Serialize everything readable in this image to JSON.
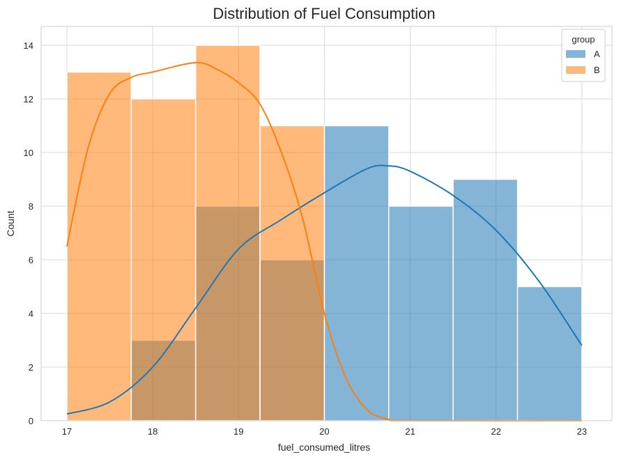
{
  "chart_data": {
    "type": "histogram",
    "title": "Distribution of Fuel Consumption",
    "xlabel": "fuel_consumed_litres",
    "ylabel": "Count",
    "xlim": [
      16.7,
      23.35
    ],
    "ylim": [
      0,
      14.7
    ],
    "x_ticks": [
      "17",
      "18",
      "19",
      "20",
      "21",
      "22",
      "23"
    ],
    "y_ticks": [
      "0",
      "2",
      "4",
      "6",
      "8",
      "10",
      "12",
      "14"
    ],
    "bin_edges": [
      17.0,
      17.75,
      18.5,
      19.25,
      20.0,
      20.75,
      21.5,
      22.25,
      23.0
    ],
    "grid": true,
    "legend": {
      "title": "group",
      "placement": "top-right"
    },
    "series": [
      {
        "name": "A",
        "color": "#1f77b4",
        "counts": [
          0,
          3,
          8,
          6,
          11,
          8,
          9,
          5
        ],
        "kde": [
          [
            17.0,
            0.25
          ],
          [
            17.5,
            0.7
          ],
          [
            18.0,
            2.0
          ],
          [
            18.5,
            4.2
          ],
          [
            19.0,
            6.4
          ],
          [
            19.5,
            7.5
          ],
          [
            20.0,
            8.5
          ],
          [
            20.5,
            9.4
          ],
          [
            20.75,
            9.5
          ],
          [
            21.0,
            9.3
          ],
          [
            21.5,
            8.4
          ],
          [
            22.0,
            7.1
          ],
          [
            22.5,
            5.2
          ],
          [
            23.0,
            2.8
          ]
        ]
      },
      {
        "name": "B",
        "color": "#ff7f0e",
        "counts": [
          13,
          12,
          14,
          11,
          0,
          0,
          0,
          0
        ],
        "kde": [
          [
            17.0,
            6.5
          ],
          [
            17.25,
            10.2
          ],
          [
            17.5,
            12.2
          ],
          [
            17.75,
            12.8
          ],
          [
            18.0,
            13.0
          ],
          [
            18.5,
            13.35
          ],
          [
            18.75,
            13.1
          ],
          [
            19.0,
            12.6
          ],
          [
            19.25,
            11.8
          ],
          [
            19.5,
            10.0
          ],
          [
            19.75,
            7.5
          ],
          [
            20.0,
            4.0
          ],
          [
            20.25,
            1.6
          ],
          [
            20.5,
            0.4
          ],
          [
            20.75,
            0.05
          ],
          [
            21.0,
            0.0
          ],
          [
            23.0,
            0.0
          ]
        ]
      }
    ]
  }
}
